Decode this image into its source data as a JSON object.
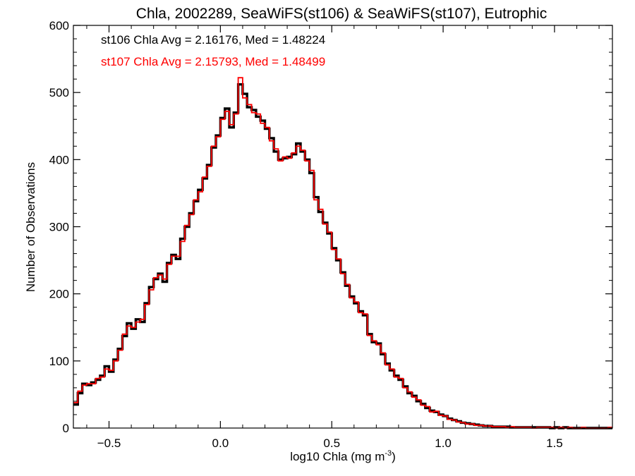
{
  "chart_data": {
    "type": "line",
    "step": true,
    "title": "Chla, 2002289, SeaWiFS(st106) & SeaWiFS(st107), Eutrophic",
    "xlabel": "log10 Chla (mg m",
    "xlabel_sup": "-3",
    "xlabel_close": ")",
    "ylabel": "Number of Observations",
    "xlim": [
      -0.66,
      1.76
    ],
    "ylim": [
      0,
      600
    ],
    "xticks": [
      -0.5,
      0.0,
      0.5,
      1.0,
      1.5
    ],
    "xtick_labels": [
      "−0.5",
      "0.0",
      "0.5",
      "1.0",
      "1.5"
    ],
    "yticks": [
      0,
      100,
      200,
      300,
      400,
      500,
      600
    ],
    "ytick_labels": [
      "0",
      "100",
      "200",
      "300",
      "400",
      "500",
      "600"
    ],
    "annotations": [
      {
        "text": "st106 Chla Avg = 2.16176, Med = 1.48224",
        "color": "#000000"
      },
      {
        "text": "st107 Chla Avg = 2.15793, Med = 1.48499",
        "color": "#ff0000"
      }
    ],
    "bin_width": 0.02,
    "series": [
      {
        "color": "#000000",
        "x": [
          -0.66,
          -0.64,
          -0.62,
          -0.6,
          -0.58,
          -0.56,
          -0.54,
          -0.52,
          -0.5,
          -0.48,
          -0.46,
          -0.44,
          -0.42,
          -0.4,
          -0.38,
          -0.36,
          -0.34,
          -0.32,
          -0.3,
          -0.28,
          -0.26,
          -0.24,
          -0.22,
          -0.2,
          -0.18,
          -0.16,
          -0.14,
          -0.12,
          -0.1,
          -0.08,
          -0.06,
          -0.04,
          -0.02,
          0.0,
          0.02,
          0.04,
          0.06,
          0.08,
          0.1,
          0.12,
          0.14,
          0.16,
          0.18,
          0.2,
          0.22,
          0.24,
          0.26,
          0.28,
          0.3,
          0.32,
          0.34,
          0.36,
          0.38,
          0.4,
          0.42,
          0.44,
          0.46,
          0.48,
          0.5,
          0.52,
          0.54,
          0.56,
          0.58,
          0.6,
          0.62,
          0.64,
          0.66,
          0.68,
          0.7,
          0.72,
          0.74,
          0.76,
          0.78,
          0.8,
          0.82,
          0.84,
          0.86,
          0.88,
          0.9,
          0.92,
          0.94,
          0.96,
          0.98,
          1.0,
          1.02,
          1.04,
          1.06,
          1.08,
          1.1,
          1.12,
          1.14,
          1.16,
          1.18,
          1.2,
          1.22,
          1.24,
          1.26,
          1.28,
          1.3,
          1.32,
          1.34,
          1.36,
          1.38,
          1.4,
          1.42,
          1.44,
          1.46,
          1.48,
          1.5,
          1.52,
          1.54,
          1.56,
          1.58,
          1.6,
          1.62,
          1.64,
          1.66,
          1.68,
          1.7,
          1.72,
          1.74
        ],
        "values": [
          35,
          52,
          66,
          64,
          68,
          72,
          78,
          92,
          84,
          102,
          118,
          137,
          156,
          148,
          162,
          158,
          186,
          210,
          222,
          230,
          218,
          246,
          258,
          252,
          282,
          300,
          320,
          338,
          355,
          372,
          392,
          418,
          436,
          462,
          476,
          448,
          470,
          512,
          498,
          478,
          474,
          464,
          458,
          446,
          432,
          412,
          400,
          402,
          404,
          408,
          424,
          412,
          400,
          380,
          344,
          322,
          306,
          290,
          268,
          250,
          232,
          212,
          196,
          186,
          174,
          168,
          140,
          128,
          126,
          110,
          96,
          86,
          78,
          72,
          62,
          52,
          48,
          40,
          36,
          30,
          26,
          24,
          20,
          18,
          14,
          12,
          10,
          8,
          7,
          6,
          5,
          4,
          3,
          3,
          2,
          2,
          2,
          2,
          1,
          1,
          1,
          1,
          1,
          1,
          1,
          1,
          1,
          0,
          1,
          0,
          1,
          0,
          0,
          0,
          0,
          0,
          0,
          0,
          0,
          0,
          0
        ]
      },
      {
        "color": "#ff0000",
        "x": [
          -0.66,
          -0.64,
          -0.62,
          -0.6,
          -0.58,
          -0.56,
          -0.54,
          -0.52,
          -0.5,
          -0.48,
          -0.46,
          -0.44,
          -0.42,
          -0.4,
          -0.38,
          -0.36,
          -0.34,
          -0.32,
          -0.3,
          -0.28,
          -0.26,
          -0.24,
          -0.22,
          -0.2,
          -0.18,
          -0.16,
          -0.14,
          -0.12,
          -0.1,
          -0.08,
          -0.06,
          -0.04,
          -0.02,
          0.0,
          0.02,
          0.04,
          0.06,
          0.08,
          0.1,
          0.12,
          0.14,
          0.16,
          0.18,
          0.2,
          0.22,
          0.24,
          0.26,
          0.28,
          0.3,
          0.32,
          0.34,
          0.36,
          0.38,
          0.4,
          0.42,
          0.44,
          0.46,
          0.48,
          0.5,
          0.52,
          0.54,
          0.56,
          0.58,
          0.6,
          0.62,
          0.64,
          0.66,
          0.68,
          0.7,
          0.72,
          0.74,
          0.76,
          0.78,
          0.8,
          0.82,
          0.84,
          0.86,
          0.88,
          0.9,
          0.92,
          0.94,
          0.96,
          0.98,
          1.0,
          1.02,
          1.04,
          1.06,
          1.08,
          1.1,
          1.12,
          1.14,
          1.16,
          1.18,
          1.2,
          1.22,
          1.24,
          1.26,
          1.28,
          1.3,
          1.32,
          1.34,
          1.36,
          1.38,
          1.4,
          1.42,
          1.44,
          1.46,
          1.48,
          1.5,
          1.52,
          1.54,
          1.56,
          1.58,
          1.6,
          1.62,
          1.64,
          1.66,
          1.68,
          1.7,
          1.72,
          1.74
        ],
        "values": [
          38,
          55,
          64,
          66,
          66,
          74,
          76,
          88,
          86,
          100,
          116,
          140,
          152,
          150,
          158,
          162,
          184,
          206,
          224,
          228,
          222,
          244,
          256,
          256,
          278,
          302,
          318,
          340,
          352,
          374,
          390,
          420,
          434,
          460,
          472,
          452,
          468,
          522,
          492,
          482,
          470,
          468,
          454,
          448,
          428,
          416,
          398,
          404,
          402,
          410,
          420,
          414,
          398,
          384,
          340,
          326,
          304,
          292,
          266,
          252,
          230,
          214,
          194,
          188,
          172,
          170,
          138,
          130,
          124,
          112,
          94,
          88,
          76,
          74,
          60,
          54,
          46,
          42,
          34,
          32,
          24,
          25,
          19,
          18,
          13,
          12,
          9,
          8,
          6,
          6,
          4,
          4,
          3,
          3,
          2,
          2,
          2,
          1,
          2,
          1,
          1,
          1,
          1,
          0,
          1,
          1,
          1,
          1,
          0,
          1,
          0,
          1,
          0,
          0,
          1,
          0,
          0,
          0,
          0,
          0,
          1
        ]
      }
    ]
  }
}
